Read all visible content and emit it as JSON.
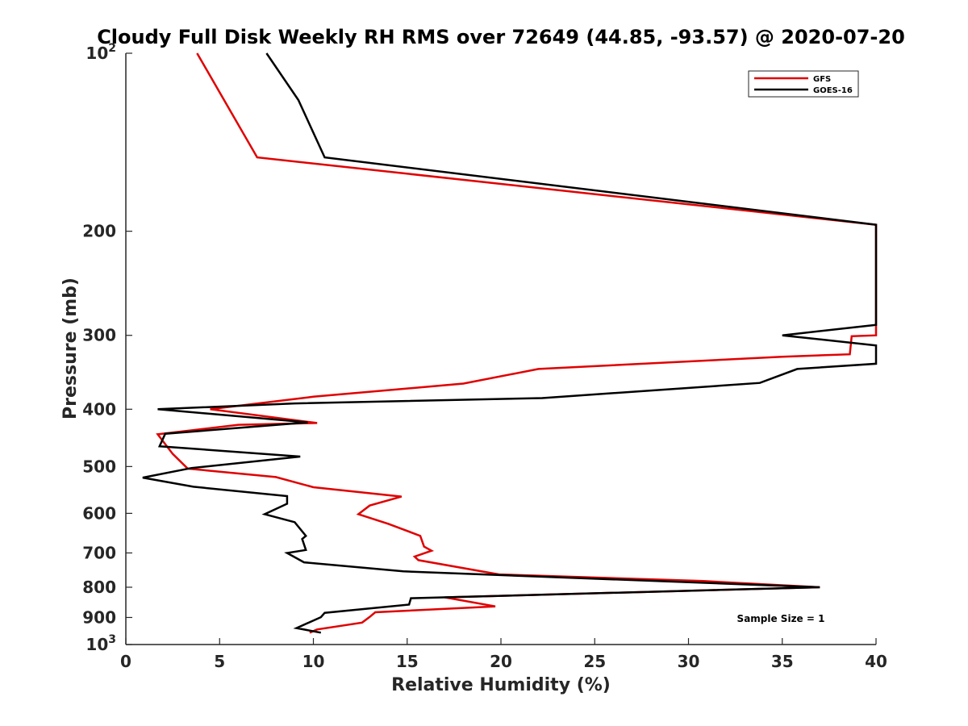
{
  "chart_data": {
    "type": "line",
    "title": "Cloudy Full Disk Weekly RH RMS over 72649 (44.85, -93.57) @ 2020-07-20",
    "xlabel": "Relative Humidity (%)",
    "ylabel": "Pressure (mb)",
    "xlim": [
      0,
      40
    ],
    "ylim": [
      100,
      1000
    ],
    "yscale": "log",
    "y_reversed": true,
    "grid": false,
    "legend_position": "top-right",
    "x_ticks": [
      "0",
      "5",
      "10",
      "15",
      "20",
      "25",
      "30",
      "35",
      "40"
    ],
    "y_ticks": [
      {
        "value": 100,
        "base": "10",
        "exp": "2"
      },
      {
        "value": 200,
        "label": "200"
      },
      {
        "value": 300,
        "label": "300"
      },
      {
        "value": 400,
        "label": "400"
      },
      {
        "value": 500,
        "label": "500"
      },
      {
        "value": 600,
        "label": "600"
      },
      {
        "value": 700,
        "label": "700"
      },
      {
        "value": 800,
        "label": "800"
      },
      {
        "value": 900,
        "label": "900"
      },
      {
        "value": 1000,
        "base": "10",
        "exp": "3"
      }
    ],
    "series": [
      {
        "name": "GFS",
        "color": "#e00000",
        "points": [
          [
            3.8,
            100
          ],
          [
            7.0,
            150
          ],
          [
            40.0,
            195
          ],
          [
            40.0,
            300
          ],
          [
            38.7,
            301
          ],
          [
            38.6,
            323
          ],
          [
            35.0,
            326
          ],
          [
            22.0,
            342
          ],
          [
            18.0,
            362
          ],
          [
            10.0,
            381
          ],
          [
            4.5,
            400
          ],
          [
            10.2,
            422
          ],
          [
            6.0,
            425
          ],
          [
            1.7,
            441
          ],
          [
            2.5,
            476
          ],
          [
            3.3,
            504
          ],
          [
            8.0,
            521
          ],
          [
            10.0,
            542
          ],
          [
            14.7,
            562
          ],
          [
            13.0,
            582
          ],
          [
            12.4,
            602
          ],
          [
            14.0,
            625
          ],
          [
            15.7,
            655
          ],
          [
            15.9,
            683
          ],
          [
            16.3,
            694
          ],
          [
            15.4,
            710
          ],
          [
            15.6,
            720
          ],
          [
            19.9,
            761
          ],
          [
            30.8,
            781
          ],
          [
            37.0,
            800
          ],
          [
            17.0,
            832
          ],
          [
            19.7,
            862
          ],
          [
            13.3,
            882
          ],
          [
            13.0,
            898
          ],
          [
            12.6,
            918
          ],
          [
            10.2,
            943
          ],
          [
            9.8,
            955
          ]
        ]
      },
      {
        "name": "GOES-16",
        "color": "#000000",
        "points": [
          [
            7.5,
            100
          ],
          [
            9.2,
            120
          ],
          [
            10.6,
            150
          ],
          [
            40.0,
            195
          ],
          [
            40.0,
            288
          ],
          [
            35.0,
            300
          ],
          [
            40.0,
            312
          ],
          [
            40.0,
            335
          ],
          [
            35.8,
            342
          ],
          [
            33.8,
            361
          ],
          [
            22.2,
            383
          ],
          [
            9.0,
            391
          ],
          [
            1.7,
            400
          ],
          [
            9.7,
            421
          ],
          [
            2.1,
            440
          ],
          [
            1.8,
            462
          ],
          [
            9.3,
            481
          ],
          [
            3.5,
            503
          ],
          [
            0.9,
            522
          ],
          [
            3.6,
            541
          ],
          [
            8.6,
            561
          ],
          [
            8.6,
            578
          ],
          [
            7.4,
            602
          ],
          [
            9.0,
            621
          ],
          [
            9.6,
            655
          ],
          [
            9.4,
            663
          ],
          [
            9.6,
            692
          ],
          [
            8.6,
            700
          ],
          [
            9.5,
            726
          ],
          [
            14.8,
            752
          ],
          [
            37.0,
            800
          ],
          [
            15.2,
            835
          ],
          [
            15.1,
            856
          ],
          [
            10.6,
            884
          ],
          [
            10.4,
            899
          ],
          [
            9.1,
            938
          ],
          [
            10.4,
            955
          ]
        ]
      }
    ],
    "annotation": "Sample Size = 1"
  }
}
